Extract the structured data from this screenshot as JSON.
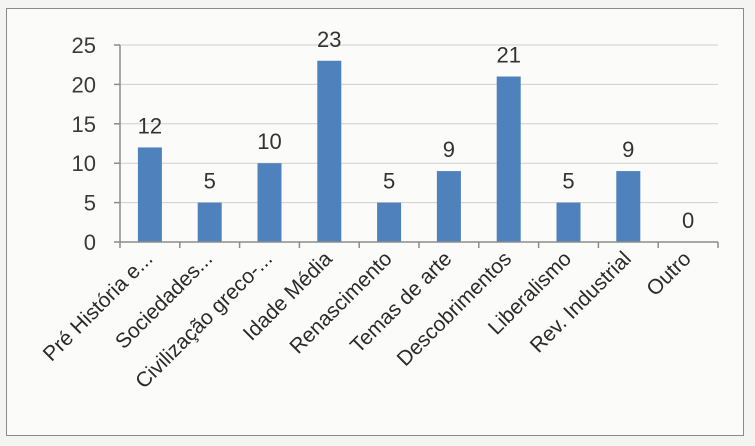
{
  "chart_data": {
    "type": "bar",
    "categories": [
      "Pré História e...",
      "Sociedades...",
      "Civilização greco-...",
      "Idade Média",
      "Renascimento",
      "Temas de arte",
      "Descobrimentos",
      "Liberalismo",
      "Rev. Industrial",
      "Outro"
    ],
    "values": [
      12,
      5,
      10,
      23,
      5,
      9,
      21,
      5,
      9,
      0
    ],
    "data_labels": [
      "12",
      "5",
      "10",
      "23",
      "5",
      "9",
      "21",
      "5",
      "9",
      "0"
    ],
    "yticks": [
      "0",
      "5",
      "10",
      "15",
      "20",
      "25"
    ],
    "ylim": [
      0,
      25
    ],
    "title": "",
    "xlabel": "",
    "ylabel": "",
    "grid": true,
    "legend": "none",
    "bar_color": "#4f81bd"
  }
}
